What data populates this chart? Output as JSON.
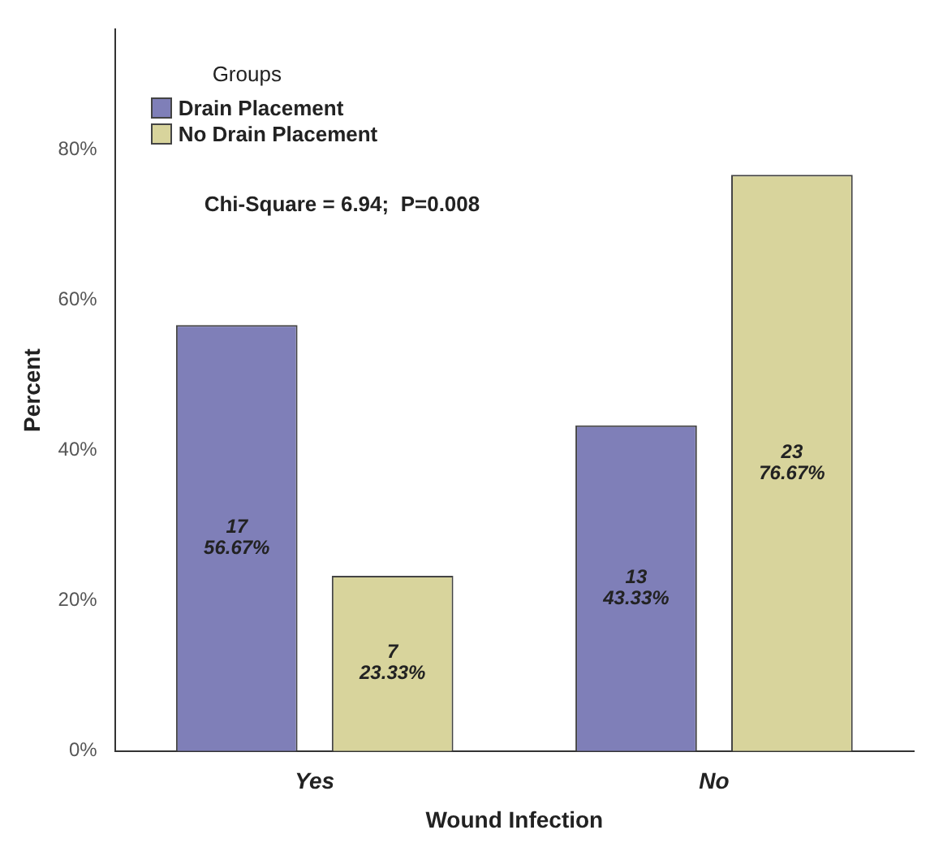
{
  "chart_data": {
    "type": "bar",
    "categories": [
      "Yes",
      "No"
    ],
    "xlabel": "Wound Infection",
    "ylabel": "Percent",
    "legend_title": "Groups",
    "series": [
      {
        "name": "Drain Placement",
        "color": "#7f7fb8",
        "values": [
          56.67,
          43.33
        ],
        "value_labels": [
          "17\n56.67%",
          "13\n43.33%"
        ]
      },
      {
        "name": "No Drain Placement",
        "color": "#d8d49c",
        "values": [
          23.33,
          76.67
        ],
        "value_labels": [
          "7\n23.33%",
          "23\n76.67%"
        ]
      }
    ],
    "ylim": [
      0,
      96
    ],
    "yticks": [
      {
        "value": 0,
        "label": "0%"
      },
      {
        "value": 20,
        "label": "20%"
      },
      {
        "value": 40,
        "label": "40%"
      },
      {
        "value": 60,
        "label": "60%"
      },
      {
        "value": 80,
        "label": "80%"
      }
    ],
    "annotations": [
      "Chi-Square = 6.94;  P=0.008"
    ],
    "legend": "top left",
    "grid": false
  }
}
